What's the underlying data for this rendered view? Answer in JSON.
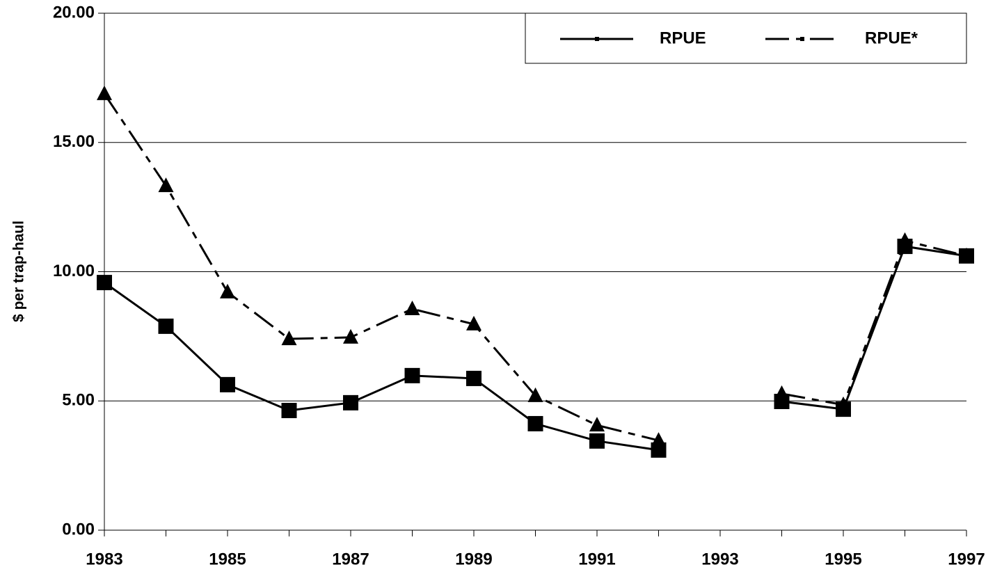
{
  "chart_data": {
    "type": "line",
    "y_label": "$ per trap-haul",
    "categories": [
      "1983",
      null,
      "1985",
      null,
      "1987",
      null,
      "1989",
      null,
      "1991",
      null,
      "1993",
      null,
      "1995",
      null,
      "1997"
    ],
    "series": [
      {
        "name": "RPUE",
        "color": "#000000",
        "dash": "solid",
        "marker": "square",
        "values": [
          9.58,
          7.89,
          5.63,
          4.63,
          4.93,
          5.98,
          5.87,
          4.12,
          3.45,
          3.1,
          null,
          4.98,
          4.68,
          10.98,
          10.61
        ]
      },
      {
        "name": "RPUE*",
        "color": "#000000",
        "dash": "dashdot",
        "marker": "triangle",
        "values": [
          16.88,
          13.32,
          9.21,
          7.4,
          7.46,
          8.56,
          7.97,
          5.2,
          4.06,
          3.47,
          null,
          5.28,
          4.85,
          11.2,
          10.61
        ]
      }
    ],
    "ylim": [
      0,
      20
    ],
    "yticks": [
      {
        "value": 0,
        "label": "0.00"
      },
      {
        "value": 5,
        "label": "5.00"
      },
      {
        "value": 10,
        "label": "10.00"
      },
      {
        "value": 15,
        "label": "15.00"
      },
      {
        "value": 20,
        "label": "20.00"
      }
    ],
    "grid": true,
    "legend": "top-right"
  }
}
